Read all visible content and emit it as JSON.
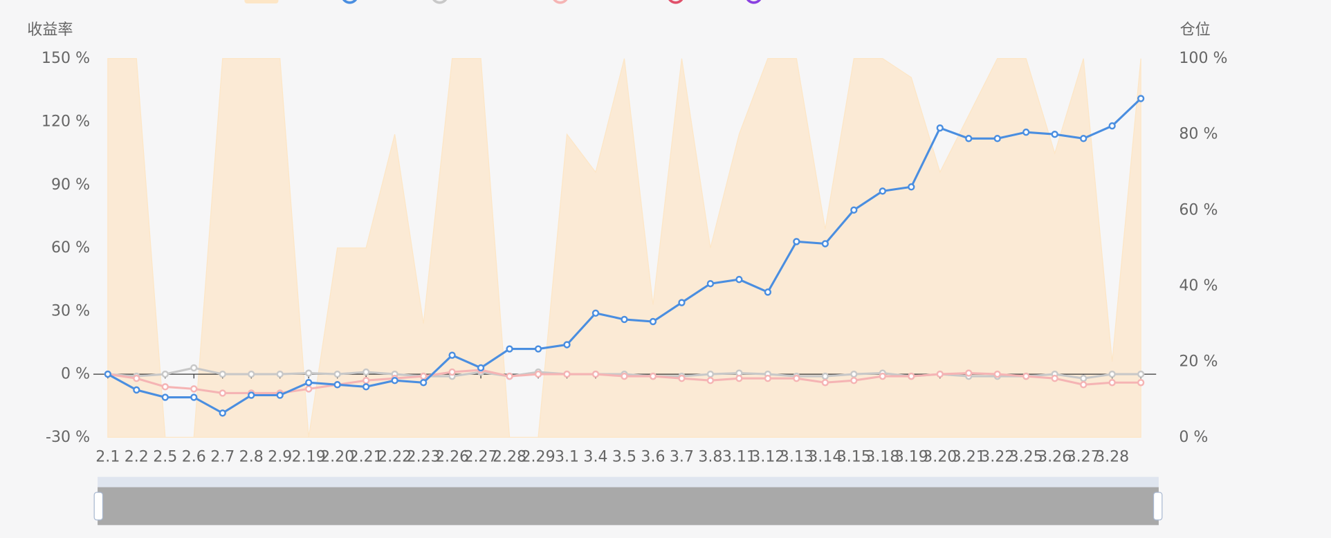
{
  "chart_data": {
    "type": "line",
    "y_axis_label": "收益率",
    "y2_axis_label": "仓位",
    "categories": [
      "2.1",
      "2.2",
      "2.5",
      "2.6",
      "2.7",
      "2.8",
      "2.9",
      "2.19",
      "2.20",
      "2.21",
      "2.22",
      "2.23",
      "2.26",
      "2.27",
      "2.28",
      "2.29",
      "3.1",
      "3.4",
      "3.5",
      "3.6",
      "3.7",
      "3.8",
      "3.11",
      "3.12",
      "3.13",
      "3.14",
      "3.15",
      "3.18",
      "3.19",
      "3.20",
      "3.21",
      "3.22",
      "3.25",
      "3.26",
      "3.27",
      "3.28",
      null
    ],
    "series": [
      {
        "type": "area",
        "axis": "y2",
        "color": "#fde6c6",
        "values": [
          100,
          100,
          0,
          0,
          100,
          100,
          100,
          0,
          50,
          50,
          80,
          30,
          100,
          100,
          0,
          0,
          80,
          70,
          100,
          35,
          100,
          50,
          80,
          100,
          100,
          55,
          100,
          100,
          95,
          70,
          85,
          100,
          100,
          75,
          100,
          20,
          100
        ]
      },
      {
        "type": "line",
        "color": "#c8c8c8",
        "values": [
          0,
          -1,
          0,
          3,
          0,
          0,
          0,
          0.5,
          0,
          1,
          0,
          -1,
          -1,
          1,
          -1,
          1,
          0,
          0,
          0,
          -1,
          -1,
          0,
          0.5,
          0,
          -1,
          -1,
          0,
          0.5,
          -1,
          0,
          -1,
          -1,
          -1,
          0,
          -2,
          0,
          0
        ]
      },
      {
        "type": "line",
        "color": "#f5b4b4",
        "values": [
          0,
          -2,
          -6,
          -7,
          -9,
          -9,
          -9,
          -7,
          -5,
          -3,
          -2,
          -1,
          1,
          2,
          -1,
          0,
          0,
          0,
          -1,
          -1,
          -2,
          -3,
          -2,
          -2,
          -2,
          -4,
          -3,
          -1,
          -1,
          0,
          0.5,
          0,
          -1,
          -2,
          -5,
          -4,
          -4
        ]
      },
      {
        "type": "line",
        "color": "#4a8ee0",
        "values": [
          0,
          -7.5,
          -11,
          -11,
          -18.5,
          -10,
          -10,
          -4,
          -5,
          -6,
          -3,
          -4,
          9,
          3,
          12,
          12,
          14,
          29,
          26,
          25,
          34,
          43,
          45,
          39,
          63,
          62,
          78,
          87,
          89,
          117,
          112,
          112,
          115,
          114,
          112,
          118,
          131
        ]
      }
    ],
    "ylim": [
      -30,
      150
    ],
    "yticks": [
      {
        "value": -30,
        "label": "-30 %"
      },
      {
        "value": 0,
        "label": "0 %"
      },
      {
        "value": 30,
        "label": "30 %"
      },
      {
        "value": 60,
        "label": "60 %"
      },
      {
        "value": 90,
        "label": "90 %"
      },
      {
        "value": 120,
        "label": "120 %"
      },
      {
        "value": 150,
        "label": "150 %"
      }
    ],
    "y2lim": [
      0,
      100
    ],
    "y2ticks": [
      {
        "value": 0,
        "label": "0 %"
      },
      {
        "value": 20,
        "label": "20 %"
      },
      {
        "value": 40,
        "label": "40 %"
      },
      {
        "value": 60,
        "label": "60 %"
      },
      {
        "value": 80,
        "label": "80 %"
      },
      {
        "value": 100,
        "label": "100 %"
      }
    ],
    "grid": false
  }
}
